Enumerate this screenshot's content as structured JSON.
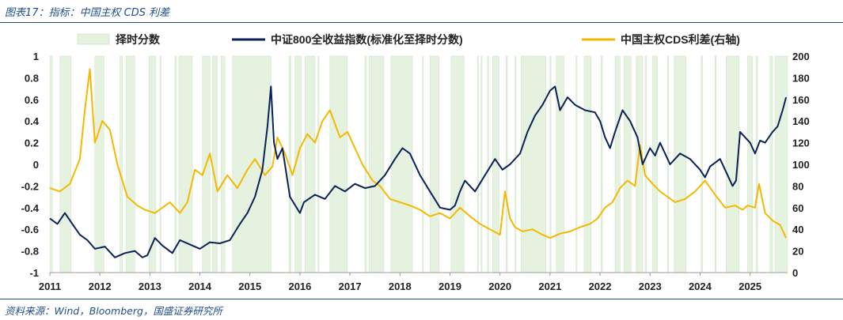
{
  "figure": {
    "title": "图表17：指标：中国主权 CDS 利差",
    "source": "资料来源：Wind，Bloomberg，国盛证券研究所"
  },
  "chart_data": {
    "type": "line",
    "x_ticks": [
      "2011",
      "2012",
      "2013",
      "2014",
      "2015",
      "2016",
      "2017",
      "2018",
      "2019",
      "2020",
      "2021",
      "2022",
      "2023",
      "2024",
      "2025"
    ],
    "x_range": [
      2011.0,
      2025.75
    ],
    "left_axis": {
      "range": [
        -1,
        1
      ],
      "ticks": [
        "1",
        "0.8",
        "0.6",
        "0.4",
        "0.2",
        "0",
        "-0.2",
        "-0.4",
        "-0.6",
        "-0.8",
        "-1"
      ]
    },
    "right_axis": {
      "range": [
        0,
        200
      ],
      "ticks": [
        "200",
        "180",
        "160",
        "140",
        "120",
        "100",
        "80",
        "60",
        "40",
        "20",
        "0"
      ]
    },
    "colors": {
      "timing": "#e4f2df",
      "csi800": "#0c2157",
      "cds": "#f5b800"
    },
    "legend": [
      "择时分数",
      "中证800全收益指数(标准化至择时分数)",
      "中国主权CDS利差(右轴)"
    ],
    "series": [
      {
        "name": "择时分数",
        "kind": "band",
        "axis": "left",
        "note": "score shown as +1 in shaded periods, -1 otherwise",
        "periods": [
          [
            2011.0,
            2011.05
          ],
          [
            2011.2,
            2011.42
          ],
          [
            2011.9,
            2012.08
          ],
          [
            2012.4,
            2012.45
          ],
          [
            2012.52,
            2012.7
          ],
          [
            2012.98,
            2013.12
          ],
          [
            2013.2,
            2013.22
          ],
          [
            2013.5,
            2013.53
          ],
          [
            2013.58,
            2013.85
          ],
          [
            2014.05,
            2014.2
          ],
          [
            2014.25,
            2014.35
          ],
          [
            2014.42,
            2014.5
          ],
          [
            2014.65,
            2015.42
          ],
          [
            2015.78,
            2015.82
          ],
          [
            2015.9,
            2016.03
          ],
          [
            2016.1,
            2016.3
          ],
          [
            2016.36,
            2016.38
          ],
          [
            2016.6,
            2016.95
          ],
          [
            2017.3,
            2017.33
          ],
          [
            2017.38,
            2017.68
          ],
          [
            2017.82,
            2018.25
          ],
          [
            2018.45,
            2018.47
          ],
          [
            2018.6,
            2018.78
          ],
          [
            2019.02,
            2019.28
          ],
          [
            2019.55,
            2019.57
          ],
          [
            2019.62,
            2019.64
          ],
          [
            2019.75,
            2019.77
          ],
          [
            2019.85,
            2019.98
          ],
          [
            2020.12,
            2020.15
          ],
          [
            2020.3,
            2020.32
          ],
          [
            2020.42,
            2020.92
          ],
          [
            2021.0,
            2021.02
          ],
          [
            2021.12,
            2021.28
          ],
          [
            2021.52,
            2021.54
          ],
          [
            2021.68,
            2021.82
          ],
          [
            2022.02,
            2022.05
          ],
          [
            2022.3,
            2022.4
          ],
          [
            2022.48,
            2022.62
          ],
          [
            2022.72,
            2022.85
          ],
          [
            2022.9,
            2022.93
          ],
          [
            2023.05,
            2023.15
          ],
          [
            2023.35,
            2023.37
          ],
          [
            2023.48,
            2023.72
          ],
          [
            2024.02,
            2024.05
          ],
          [
            2024.3,
            2024.32
          ],
          [
            2024.52,
            2024.78
          ],
          [
            2024.95,
            2025.05
          ],
          [
            2025.12,
            2025.15
          ],
          [
            2025.4,
            2025.45
          ],
          [
            2025.5,
            2025.75
          ]
        ]
      },
      {
        "name": "中证800全收益指数(标准化至择时分数)",
        "axis": "left",
        "x": [
          2011.0,
          2011.15,
          2011.3,
          2011.45,
          2011.6,
          2011.75,
          2011.9,
          2012.1,
          2012.3,
          2012.5,
          2012.7,
          2012.85,
          2012.95,
          2013.1,
          2013.25,
          2013.45,
          2013.6,
          2013.8,
          2014.0,
          2014.2,
          2014.4,
          2014.6,
          2014.8,
          2014.95,
          2015.1,
          2015.25,
          2015.35,
          2015.42,
          2015.48,
          2015.55,
          2015.65,
          2015.8,
          2016.0,
          2016.08,
          2016.3,
          2016.5,
          2016.7,
          2016.9,
          2017.1,
          2017.3,
          2017.5,
          2017.7,
          2017.9,
          2018.05,
          2018.2,
          2018.4,
          2018.6,
          2018.8,
          2019.0,
          2019.1,
          2019.2,
          2019.3,
          2019.5,
          2019.7,
          2019.9,
          2020.05,
          2020.2,
          2020.4,
          2020.55,
          2020.7,
          2020.85,
          2021.0,
          2021.1,
          2021.2,
          2021.35,
          2021.5,
          2021.7,
          2021.9,
          2022.0,
          2022.1,
          2022.2,
          2022.3,
          2022.45,
          2022.6,
          2022.75,
          2022.85,
          2023.0,
          2023.1,
          2023.2,
          2023.4,
          2023.6,
          2023.8,
          2024.0,
          2024.1,
          2024.2,
          2024.4,
          2024.55,
          2024.65,
          2024.72,
          2024.8,
          2024.9,
          2025.0,
          2025.1,
          2025.2,
          2025.3,
          2025.45,
          2025.55,
          2025.65,
          2025.72
        ],
        "values": [
          -0.5,
          -0.55,
          -0.45,
          -0.55,
          -0.65,
          -0.7,
          -0.78,
          -0.76,
          -0.86,
          -0.82,
          -0.8,
          -0.86,
          -0.84,
          -0.68,
          -0.75,
          -0.82,
          -0.7,
          -0.74,
          -0.78,
          -0.72,
          -0.73,
          -0.7,
          -0.55,
          -0.45,
          -0.3,
          -0.05,
          0.35,
          0.72,
          0.2,
          0.05,
          0.15,
          -0.3,
          -0.45,
          -0.35,
          -0.28,
          -0.32,
          -0.2,
          -0.25,
          -0.18,
          -0.22,
          -0.2,
          -0.1,
          0.05,
          0.15,
          0.1,
          -0.1,
          -0.25,
          -0.4,
          -0.42,
          -0.38,
          -0.25,
          -0.15,
          -0.25,
          -0.1,
          0.05,
          -0.05,
          0.0,
          0.1,
          0.3,
          0.45,
          0.55,
          0.68,
          0.72,
          0.5,
          0.62,
          0.55,
          0.5,
          0.48,
          0.4,
          0.25,
          0.15,
          0.3,
          0.5,
          0.4,
          0.25,
          0.0,
          0.15,
          0.08,
          0.2,
          0.0,
          0.1,
          0.05,
          -0.05,
          -0.12,
          -0.02,
          0.05,
          -0.1,
          -0.2,
          -0.15,
          0.3,
          0.25,
          0.2,
          0.1,
          0.22,
          0.2,
          0.3,
          0.35,
          0.5,
          0.62
        ]
      },
      {
        "name": "中国主权CDS利差(右轴)",
        "axis": "right",
        "x": [
          2011.0,
          2011.2,
          2011.4,
          2011.6,
          2011.7,
          2011.8,
          2011.9,
          2012.05,
          2012.2,
          2012.35,
          2012.55,
          2012.75,
          2012.9,
          2013.1,
          2013.25,
          2013.4,
          2013.6,
          2013.75,
          2013.9,
          2014.05,
          2014.2,
          2014.35,
          2014.55,
          2014.75,
          2014.95,
          2015.1,
          2015.3,
          2015.45,
          2015.55,
          2015.7,
          2015.85,
          2016.0,
          2016.15,
          2016.3,
          2016.45,
          2016.6,
          2016.8,
          2016.95,
          2017.1,
          2017.25,
          2017.45,
          2017.6,
          2017.8,
          2018.0,
          2018.2,
          2018.4,
          2018.6,
          2018.8,
          2019.0,
          2019.2,
          2019.4,
          2019.6,
          2019.8,
          2020.0,
          2020.1,
          2020.2,
          2020.3,
          2020.45,
          2020.65,
          2020.85,
          2021.0,
          2021.2,
          2021.4,
          2021.6,
          2021.8,
          2021.95,
          2022.1,
          2022.25,
          2022.4,
          2022.55,
          2022.7,
          2022.8,
          2022.9,
          2023.05,
          2023.2,
          2023.35,
          2023.5,
          2023.7,
          2023.9,
          2024.1,
          2024.3,
          2024.5,
          2024.7,
          2024.85,
          2024.95,
          2025.1,
          2025.18,
          2025.3,
          2025.45,
          2025.6,
          2025.72
        ],
        "values": [
          78,
          75,
          82,
          105,
          150,
          188,
          120,
          140,
          132,
          100,
          70,
          62,
          58,
          55,
          60,
          65,
          55,
          65,
          95,
          90,
          110,
          75,
          90,
          78,
          95,
          105,
          90,
          98,
          125,
          110,
          90,
          115,
          128,
          120,
          140,
          150,
          125,
          130,
          115,
          100,
          85,
          80,
          68,
          65,
          62,
          58,
          52,
          55,
          50,
          60,
          52,
          45,
          40,
          35,
          75,
          50,
          42,
          38,
          40,
          35,
          32,
          36,
          38,
          42,
          45,
          50,
          60,
          65,
          78,
          85,
          80,
          118,
          90,
          82,
          75,
          70,
          65,
          68,
          75,
          85,
          72,
          60,
          62,
          58,
          62,
          60,
          82,
          55,
          48,
          44,
          32
        ]
      }
    ]
  }
}
